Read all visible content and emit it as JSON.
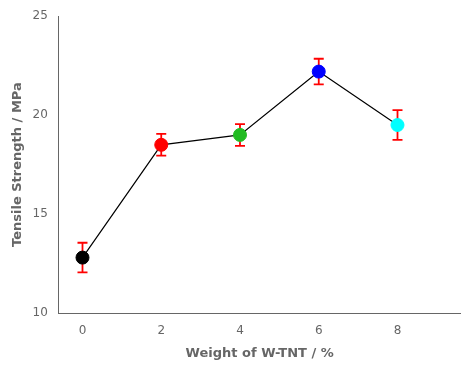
{
  "chart_data": {
    "type": "line",
    "x": [
      0,
      2,
      4,
      6,
      8
    ],
    "values": [
      12.8,
      18.5,
      19.0,
      22.2,
      19.5
    ],
    "yerr": {
      "values": [
        0.75,
        0.55,
        0.55,
        0.65,
        0.75
      ],
      "color": "red"
    },
    "color": "black",
    "colors": [
      "black",
      "red",
      "#22BB22",
      "blue",
      "cyan"
    ],
    "marker": "circle",
    "xlabel": "Weight of W-TNT / %",
    "ylabel": "Tensile Strength / MPa",
    "xlim": [
      -0.6,
      9.6
    ],
    "ylim": [
      10,
      25
    ],
    "xticks": [
      0,
      2,
      4,
      6,
      8
    ],
    "yticks": [
      10,
      15,
      20,
      25
    ],
    "grid": false
  }
}
